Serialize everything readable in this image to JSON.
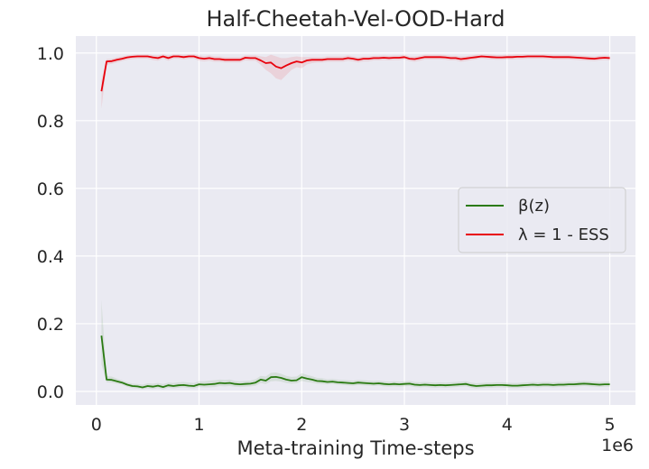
{
  "chart_data": {
    "type": "line",
    "title": "Half-Cheetah-Vel-OOD-Hard",
    "xlabel": "Meta-training Time-steps",
    "ylabel": "",
    "x_offset_label": "1e6",
    "xlim": [
      -0.2,
      5.25
    ],
    "ylim": [
      -0.04,
      1.05
    ],
    "x_ticks": [
      0,
      1,
      2,
      3,
      4,
      5
    ],
    "x_tick_labels": [
      "0",
      "1",
      "2",
      "3",
      "4",
      "5"
    ],
    "y_ticks": [
      0.0,
      0.2,
      0.4,
      0.6,
      0.8,
      1.0
    ],
    "y_tick_labels": [
      "0.0",
      "0.2",
      "0.4",
      "0.6",
      "0.8",
      "1.0"
    ],
    "grid": true,
    "legend_position": "center-right",
    "legend_entries": [
      "β(z)",
      "λ = 1 - ESS"
    ],
    "x": [
      0.05,
      0.1,
      0.15,
      0.2,
      0.25,
      0.3,
      0.35,
      0.4,
      0.45,
      0.5,
      0.55,
      0.6,
      0.65,
      0.7,
      0.75,
      0.8,
      0.85,
      0.9,
      0.95,
      1.0,
      1.05,
      1.1,
      1.15,
      1.2,
      1.25,
      1.3,
      1.35,
      1.4,
      1.45,
      1.5,
      1.55,
      1.6,
      1.65,
      1.7,
      1.75,
      1.8,
      1.85,
      1.9,
      1.95,
      2.0,
      2.05,
      2.1,
      2.15,
      2.2,
      2.25,
      2.3,
      2.35,
      2.4,
      2.45,
      2.5,
      2.55,
      2.6,
      2.65,
      2.7,
      2.75,
      2.8,
      2.85,
      2.9,
      2.95,
      3.0,
      3.05,
      3.1,
      3.15,
      3.2,
      3.25,
      3.3,
      3.35,
      3.4,
      3.45,
      3.5,
      3.55,
      3.6,
      3.65,
      3.7,
      3.75,
      3.8,
      3.85,
      3.9,
      3.95,
      4.0,
      4.05,
      4.1,
      4.15,
      4.2,
      4.25,
      4.3,
      4.35,
      4.4,
      4.45,
      4.5,
      4.55,
      4.6,
      4.65,
      4.7,
      4.75,
      4.8,
      4.85,
      4.9,
      4.95,
      5.0
    ],
    "series": [
      {
        "name": "β(z)",
        "color": "#2a7a12",
        "band_color": "#2a7a12",
        "values": [
          0.165,
          0.035,
          0.034,
          0.03,
          0.026,
          0.02,
          0.016,
          0.015,
          0.012,
          0.016,
          0.014,
          0.017,
          0.013,
          0.018,
          0.016,
          0.018,
          0.019,
          0.017,
          0.016,
          0.021,
          0.02,
          0.021,
          0.022,
          0.025,
          0.024,
          0.025,
          0.022,
          0.021,
          0.022,
          0.023,
          0.026,
          0.035,
          0.032,
          0.042,
          0.043,
          0.04,
          0.035,
          0.032,
          0.033,
          0.042,
          0.038,
          0.035,
          0.031,
          0.03,
          0.028,
          0.029,
          0.027,
          0.026,
          0.025,
          0.024,
          0.026,
          0.025,
          0.024,
          0.023,
          0.024,
          0.022,
          0.021,
          0.022,
          0.021,
          0.022,
          0.023,
          0.02,
          0.019,
          0.02,
          0.019,
          0.018,
          0.019,
          0.018,
          0.019,
          0.02,
          0.021,
          0.022,
          0.018,
          0.016,
          0.017,
          0.018,
          0.018,
          0.019,
          0.019,
          0.018,
          0.017,
          0.017,
          0.018,
          0.019,
          0.02,
          0.019,
          0.02,
          0.02,
          0.019,
          0.02,
          0.02,
          0.021,
          0.021,
          0.022,
          0.023,
          0.022,
          0.021,
          0.02,
          0.021,
          0.021
        ],
        "upper": [
          0.27,
          0.045,
          0.044,
          0.038,
          0.033,
          0.027,
          0.023,
          0.022,
          0.02,
          0.024,
          0.023,
          0.025,
          0.022,
          0.026,
          0.025,
          0.027,
          0.028,
          0.026,
          0.025,
          0.03,
          0.03,
          0.032,
          0.033,
          0.035,
          0.034,
          0.035,
          0.031,
          0.03,
          0.031,
          0.032,
          0.036,
          0.046,
          0.044,
          0.055,
          0.056,
          0.052,
          0.046,
          0.043,
          0.044,
          0.054,
          0.049,
          0.045,
          0.04,
          0.039,
          0.036,
          0.037,
          0.035,
          0.034,
          0.033,
          0.032,
          0.034,
          0.033,
          0.032,
          0.031,
          0.032,
          0.03,
          0.029,
          0.03,
          0.029,
          0.03,
          0.031,
          0.028,
          0.027,
          0.028,
          0.027,
          0.026,
          0.027,
          0.026,
          0.027,
          0.028,
          0.029,
          0.03,
          0.026,
          0.024,
          0.025,
          0.026,
          0.026,
          0.027,
          0.027,
          0.026,
          0.025,
          0.025,
          0.026,
          0.027,
          0.028,
          0.027,
          0.028,
          0.028,
          0.027,
          0.028,
          0.028,
          0.029,
          0.029,
          0.03,
          0.031,
          0.03,
          0.029,
          0.028,
          0.029,
          0.029
        ],
        "lower": [
          0.08,
          0.027,
          0.026,
          0.023,
          0.02,
          0.014,
          0.01,
          0.009,
          0.006,
          0.009,
          0.007,
          0.01,
          0.006,
          0.011,
          0.009,
          0.011,
          0.012,
          0.01,
          0.009,
          0.013,
          0.012,
          0.012,
          0.013,
          0.016,
          0.015,
          0.016,
          0.014,
          0.013,
          0.014,
          0.015,
          0.017,
          0.025,
          0.022,
          0.03,
          0.031,
          0.029,
          0.025,
          0.023,
          0.024,
          0.031,
          0.028,
          0.026,
          0.023,
          0.022,
          0.021,
          0.022,
          0.02,
          0.019,
          0.018,
          0.017,
          0.019,
          0.018,
          0.017,
          0.016,
          0.017,
          0.015,
          0.014,
          0.015,
          0.014,
          0.015,
          0.016,
          0.013,
          0.012,
          0.013,
          0.012,
          0.011,
          0.012,
          0.011,
          0.012,
          0.013,
          0.014,
          0.015,
          0.011,
          0.009,
          0.01,
          0.011,
          0.011,
          0.012,
          0.012,
          0.011,
          0.01,
          0.01,
          0.011,
          0.012,
          0.013,
          0.012,
          0.013,
          0.013,
          0.012,
          0.013,
          0.013,
          0.014,
          0.014,
          0.015,
          0.016,
          0.015,
          0.014,
          0.013,
          0.014,
          0.014
        ]
      },
      {
        "name": "λ = 1 - ESS",
        "color": "#e8000b",
        "band_color": "#e8000b",
        "values": [
          0.887,
          0.975,
          0.976,
          0.98,
          0.983,
          0.987,
          0.989,
          0.99,
          0.99,
          0.99,
          0.987,
          0.985,
          0.99,
          0.985,
          0.99,
          0.99,
          0.988,
          0.99,
          0.99,
          0.985,
          0.983,
          0.985,
          0.982,
          0.982,
          0.98,
          0.98,
          0.98,
          0.98,
          0.986,
          0.985,
          0.985,
          0.978,
          0.97,
          0.972,
          0.96,
          0.955,
          0.963,
          0.97,
          0.975,
          0.972,
          0.978,
          0.98,
          0.98,
          0.98,
          0.982,
          0.982,
          0.982,
          0.982,
          0.985,
          0.983,
          0.98,
          0.983,
          0.983,
          0.985,
          0.985,
          0.986,
          0.985,
          0.986,
          0.986,
          0.988,
          0.983,
          0.982,
          0.985,
          0.988,
          0.988,
          0.988,
          0.988,
          0.987,
          0.985,
          0.985,
          0.982,
          0.984,
          0.986,
          0.988,
          0.99,
          0.989,
          0.988,
          0.987,
          0.987,
          0.988,
          0.988,
          0.989,
          0.989,
          0.99,
          0.99,
          0.99,
          0.99,
          0.989,
          0.988,
          0.988,
          0.988,
          0.988,
          0.987,
          0.986,
          0.985,
          0.984,
          0.983,
          0.985,
          0.986,
          0.985
        ],
        "upper": [
          0.92,
          0.982,
          0.983,
          0.987,
          0.99,
          0.993,
          0.995,
          0.996,
          0.996,
          0.996,
          0.994,
          0.993,
          0.996,
          0.993,
          0.996,
          0.996,
          0.995,
          0.996,
          0.996,
          0.993,
          0.991,
          0.993,
          0.99,
          0.99,
          0.988,
          0.988,
          0.988,
          0.988,
          0.993,
          0.993,
          0.993,
          0.99,
          0.988,
          0.995,
          0.99,
          0.985,
          0.985,
          0.988,
          0.99,
          0.988,
          0.988,
          0.988,
          0.988,
          0.988,
          0.99,
          0.99,
          0.99,
          0.99,
          0.993,
          0.99,
          0.988,
          0.99,
          0.99,
          0.992,
          0.992,
          0.993,
          0.992,
          0.993,
          0.993,
          0.995,
          0.99,
          0.99,
          0.992,
          0.995,
          0.995,
          0.995,
          0.995,
          0.994,
          0.992,
          0.992,
          0.99,
          0.991,
          0.993,
          0.995,
          0.996,
          0.996,
          0.995,
          0.994,
          0.994,
          0.995,
          0.995,
          0.996,
          0.996,
          0.996,
          0.996,
          0.996,
          0.996,
          0.996,
          0.995,
          0.995,
          0.995,
          0.995,
          0.994,
          0.993,
          0.992,
          0.991,
          0.99,
          0.992,
          0.993,
          0.992
        ],
        "lower": [
          0.835,
          0.965,
          0.968,
          0.972,
          0.976,
          0.98,
          0.982,
          0.983,
          0.983,
          0.983,
          0.979,
          0.977,
          0.983,
          0.977,
          0.983,
          0.983,
          0.981,
          0.983,
          0.983,
          0.977,
          0.975,
          0.977,
          0.974,
          0.974,
          0.972,
          0.972,
          0.972,
          0.972,
          0.978,
          0.977,
          0.977,
          0.965,
          0.95,
          0.94,
          0.925,
          0.92,
          0.935,
          0.95,
          0.958,
          0.955,
          0.966,
          0.97,
          0.972,
          0.972,
          0.974,
          0.974,
          0.974,
          0.974,
          0.977,
          0.975,
          0.972,
          0.975,
          0.975,
          0.978,
          0.978,
          0.979,
          0.978,
          0.979,
          0.979,
          0.981,
          0.976,
          0.974,
          0.977,
          0.981,
          0.981,
          0.981,
          0.981,
          0.98,
          0.978,
          0.978,
          0.974,
          0.976,
          0.979,
          0.981,
          0.984,
          0.982,
          0.981,
          0.98,
          0.98,
          0.981,
          0.981,
          0.982,
          0.982,
          0.983,
          0.983,
          0.983,
          0.983,
          0.982,
          0.981,
          0.981,
          0.981,
          0.981,
          0.98,
          0.979,
          0.978,
          0.977,
          0.976,
          0.978,
          0.979,
          0.978
        ]
      }
    ]
  }
}
